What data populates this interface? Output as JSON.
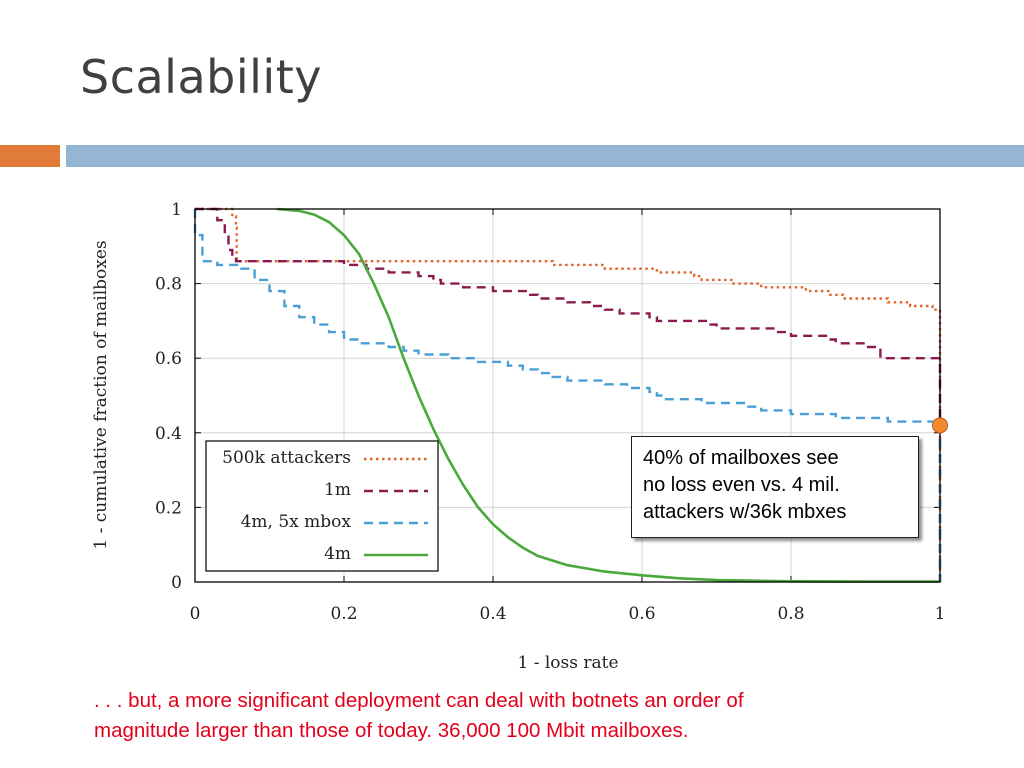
{
  "slide": {
    "title": "Scalability",
    "callout_lines": [
      "40% of mailboxes see",
      "no loss even vs. 4 mil.",
      "attackers w/36k mbxes"
    ],
    "caption_lines": [
      ". . . but, a more significant deployment can deal with botnets an order of",
      "magnitude larger than those of today. 36,000 100 Mbit mailboxes."
    ],
    "colors": {
      "accent_bar": "#e07b39",
      "main_bar": "#94b6d2",
      "caption_text": "#e3001b",
      "highlight_marker": "#f08a2c"
    }
  },
  "chart_data": {
    "type": "line",
    "xlabel": "1 - loss rate",
    "ylabel": "1 - cumulative fraction of mailboxes",
    "xlim": [
      0,
      1
    ],
    "ylim": [
      0,
      1
    ],
    "xticks": [
      "0",
      "0.2",
      "0.4",
      "0.6",
      "0.8",
      "1"
    ],
    "yticks": [
      "0",
      "0.2",
      "0.4",
      "0.6",
      "0.8",
      "1"
    ],
    "grid": true,
    "legend_position": "bottom-left",
    "highlight_point": {
      "x": 1.0,
      "y": 0.42
    },
    "series": [
      {
        "name": "500k attackers",
        "color": "#e0642c",
        "dash": "dotted",
        "step": true,
        "points": [
          [
            0.0,
            1.0
          ],
          [
            0.04,
            1.0
          ],
          [
            0.05,
            0.98
          ],
          [
            0.055,
            0.95
          ],
          [
            0.056,
            0.86
          ],
          [
            0.3,
            0.86
          ],
          [
            0.47,
            0.86
          ],
          [
            0.48,
            0.85
          ],
          [
            0.54,
            0.85
          ],
          [
            0.55,
            0.84
          ],
          [
            0.62,
            0.83
          ],
          [
            0.67,
            0.82
          ],
          [
            0.68,
            0.81
          ],
          [
            0.72,
            0.8
          ],
          [
            0.76,
            0.79
          ],
          [
            0.82,
            0.78
          ],
          [
            0.85,
            0.77
          ],
          [
            0.87,
            0.76
          ],
          [
            0.93,
            0.75
          ],
          [
            0.96,
            0.74
          ],
          [
            0.99,
            0.73
          ],
          [
            1.0,
            0.73
          ],
          [
            1.0,
            0.0
          ]
        ]
      },
      {
        "name": "1m",
        "color": "#8b1a4e",
        "dash": "dashed",
        "step": true,
        "points": [
          [
            0.0,
            1.0
          ],
          [
            0.02,
            1.0
          ],
          [
            0.03,
            0.97
          ],
          [
            0.04,
            0.93
          ],
          [
            0.045,
            0.89
          ],
          [
            0.05,
            0.87
          ],
          [
            0.055,
            0.86
          ],
          [
            0.15,
            0.86
          ],
          [
            0.2,
            0.85
          ],
          [
            0.23,
            0.84
          ],
          [
            0.26,
            0.83
          ],
          [
            0.3,
            0.82
          ],
          [
            0.32,
            0.81
          ],
          [
            0.33,
            0.8
          ],
          [
            0.36,
            0.79
          ],
          [
            0.4,
            0.78
          ],
          [
            0.45,
            0.77
          ],
          [
            0.46,
            0.76
          ],
          [
            0.5,
            0.75
          ],
          [
            0.53,
            0.74
          ],
          [
            0.55,
            0.73
          ],
          [
            0.57,
            0.72
          ],
          [
            0.61,
            0.71
          ],
          [
            0.62,
            0.7
          ],
          [
            0.68,
            0.7
          ],
          [
            0.69,
            0.69
          ],
          [
            0.7,
            0.68
          ],
          [
            0.78,
            0.67
          ],
          [
            0.8,
            0.66
          ],
          [
            0.85,
            0.65
          ],
          [
            0.86,
            0.64
          ],
          [
            0.9,
            0.63
          ],
          [
            0.92,
            0.6
          ],
          [
            1.0,
            0.6
          ],
          [
            1.0,
            0.0
          ]
        ]
      },
      {
        "name": "4m, 5x mbox",
        "color": "#4a9fd6",
        "dash": "dashed",
        "step": true,
        "points": [
          [
            0.0,
            1.0
          ],
          [
            0.0,
            0.93
          ],
          [
            0.01,
            0.86
          ],
          [
            0.03,
            0.85
          ],
          [
            0.06,
            0.84
          ],
          [
            0.08,
            0.81
          ],
          [
            0.1,
            0.78
          ],
          [
            0.12,
            0.74
          ],
          [
            0.14,
            0.71
          ],
          [
            0.16,
            0.69
          ],
          [
            0.18,
            0.67
          ],
          [
            0.2,
            0.65
          ],
          [
            0.22,
            0.64
          ],
          [
            0.26,
            0.63
          ],
          [
            0.28,
            0.62
          ],
          [
            0.3,
            0.61
          ],
          [
            0.34,
            0.6
          ],
          [
            0.38,
            0.59
          ],
          [
            0.42,
            0.58
          ],
          [
            0.44,
            0.57
          ],
          [
            0.46,
            0.56
          ],
          [
            0.48,
            0.55
          ],
          [
            0.5,
            0.54
          ],
          [
            0.55,
            0.53
          ],
          [
            0.58,
            0.52
          ],
          [
            0.61,
            0.51
          ],
          [
            0.62,
            0.5
          ],
          [
            0.63,
            0.49
          ],
          [
            0.68,
            0.48
          ],
          [
            0.74,
            0.47
          ],
          [
            0.76,
            0.46
          ],
          [
            0.8,
            0.45
          ],
          [
            0.86,
            0.44
          ],
          [
            0.93,
            0.43
          ],
          [
            1.0,
            0.42
          ],
          [
            1.0,
            0.0
          ]
        ]
      },
      {
        "name": "4m",
        "color": "#4aa83c",
        "dash": "solid",
        "step": false,
        "points": [
          [
            0.11,
            1.0
          ],
          [
            0.14,
            0.995
          ],
          [
            0.16,
            0.985
          ],
          [
            0.18,
            0.965
          ],
          [
            0.2,
            0.93
          ],
          [
            0.22,
            0.88
          ],
          [
            0.24,
            0.8
          ],
          [
            0.26,
            0.71
          ],
          [
            0.28,
            0.6
          ],
          [
            0.3,
            0.5
          ],
          [
            0.32,
            0.41
          ],
          [
            0.34,
            0.33
          ],
          [
            0.36,
            0.26
          ],
          [
            0.38,
            0.2
          ],
          [
            0.4,
            0.155
          ],
          [
            0.42,
            0.12
          ],
          [
            0.44,
            0.092
          ],
          [
            0.46,
            0.07
          ],
          [
            0.5,
            0.045
          ],
          [
            0.55,
            0.028
          ],
          [
            0.6,
            0.018
          ],
          [
            0.65,
            0.01
          ],
          [
            0.7,
            0.005
          ],
          [
            0.8,
            0.002
          ],
          [
            0.9,
            0.001
          ],
          [
            1.0,
            0.001
          ]
        ]
      }
    ]
  }
}
